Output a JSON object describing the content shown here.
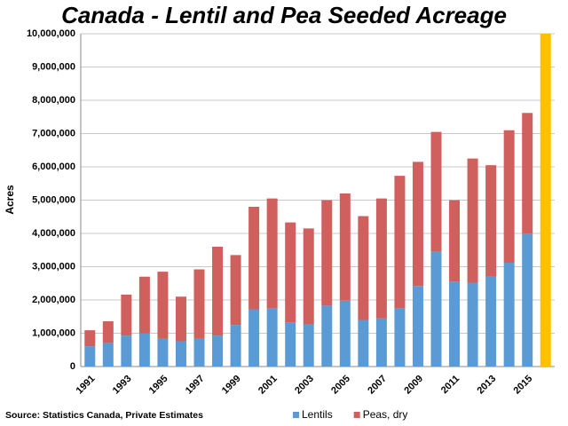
{
  "chart_data": {
    "type": "bar",
    "stacked": true,
    "title": "Canada - Lentil and Pea Seeded Acreage",
    "y_label": "Acres",
    "source": "Source: Statistics Canada, Private Estimates",
    "categories": [
      "1991",
      null,
      "1993",
      null,
      "1995",
      null,
      "1997",
      null,
      "1999",
      null,
      "2001",
      null,
      "2003",
      null,
      "2005",
      null,
      "2007",
      null,
      "2009",
      null,
      "2011",
      null,
      "2013",
      null,
      "2015",
      null
    ],
    "series": [
      {
        "name": "Lentils",
        "color": "#5b9bd5",
        "values": [
          610000,
          710000,
          930000,
          1000000,
          830000,
          760000,
          830000,
          930000,
          1250000,
          1720000,
          1740000,
          1330000,
          1280000,
          1830000,
          1980000,
          1400000,
          1450000,
          1750000,
          2420000,
          3450000,
          2550000,
          2520000,
          2720000,
          3120000,
          3980000,
          null
        ]
      },
      {
        "name": "Peas, dry",
        "color": "#d0605e",
        "values": [
          480000,
          650000,
          1230000,
          1700000,
          2020000,
          1340000,
          2090000,
          2670000,
          2100000,
          3080000,
          3310000,
          3000000,
          2870000,
          3170000,
          3220000,
          3120000,
          3600000,
          3980000,
          3730000,
          3600000,
          2450000,
          3730000,
          3330000,
          3980000,
          3640000,
          null
        ]
      },
      {
        "color": "#ffc000",
        "values": [
          null,
          null,
          null,
          null,
          null,
          null,
          null,
          null,
          null,
          null,
          null,
          null,
          null,
          null,
          null,
          null,
          null,
          null,
          null,
          null,
          null,
          null,
          null,
          null,
          null,
          10000000
        ]
      }
    ],
    "ylim": [
      0,
      10000000
    ],
    "yticks": [
      0,
      {
        "value": 1000000,
        "label": "1,000,000"
      },
      {
        "value": 2000000,
        "label": "2,000,000"
      },
      {
        "value": 3000000,
        "label": "3,000,000"
      },
      {
        "value": 4000000,
        "label": "4,000,000"
      },
      {
        "value": 5000000,
        "label": "5,000,000"
      },
      {
        "value": 6000000,
        "label": "6,000,000"
      },
      {
        "value": 7000000,
        "label": "7,000,000"
      },
      {
        "value": 8000000,
        "label": "8,000,000"
      },
      {
        "value": 9000000,
        "label": "9,000,000"
      },
      {
        "value": 10000000,
        "label": "10,000,000"
      }
    ],
    "grid": true
  }
}
